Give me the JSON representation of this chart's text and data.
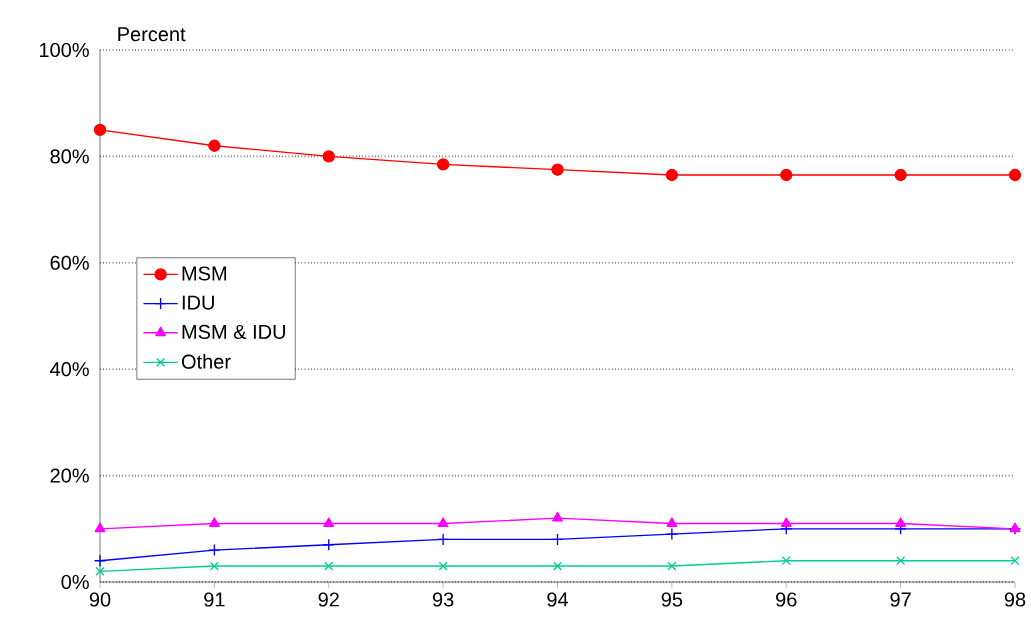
{
  "chart_data": {
    "type": "line",
    "ylabel": "Percent",
    "categories": [
      "90",
      "91",
      "92",
      "93",
      "94",
      "95",
      "96",
      "97",
      "98"
    ],
    "series": [
      {
        "name": "MSM",
        "color": "#ff0000",
        "marker": "circle",
        "values": [
          85,
          82,
          80,
          78.5,
          77.5,
          76.5,
          76.5,
          76.5,
          76.5
        ]
      },
      {
        "name": "IDU",
        "color": "#0000ff",
        "marker": "plus",
        "values": [
          4,
          6,
          7,
          8,
          8,
          9,
          10,
          10,
          10
        ]
      },
      {
        "name": "MSM & IDU",
        "color": "#ff00ff",
        "marker": "triangle",
        "values": [
          10,
          11,
          11,
          11,
          12,
          11,
          11,
          11,
          10
        ]
      },
      {
        "name": "Other",
        "color": "#00cc99",
        "marker": "cross",
        "values": [
          2,
          3,
          3,
          3,
          3,
          3,
          4,
          4,
          4
        ]
      }
    ],
    "ylim": [
      0,
      100
    ],
    "yticks": [
      {
        "value": 0,
        "label": "0%"
      },
      {
        "value": 20,
        "label": "20%"
      },
      {
        "value": 40,
        "label": "40%"
      },
      {
        "value": 60,
        "label": "60%"
      },
      {
        "value": 80,
        "label": "80%"
      },
      {
        "value": 100,
        "label": "100%"
      }
    ],
    "grid": "y",
    "legend": "left",
    "line_style": "solid"
  }
}
